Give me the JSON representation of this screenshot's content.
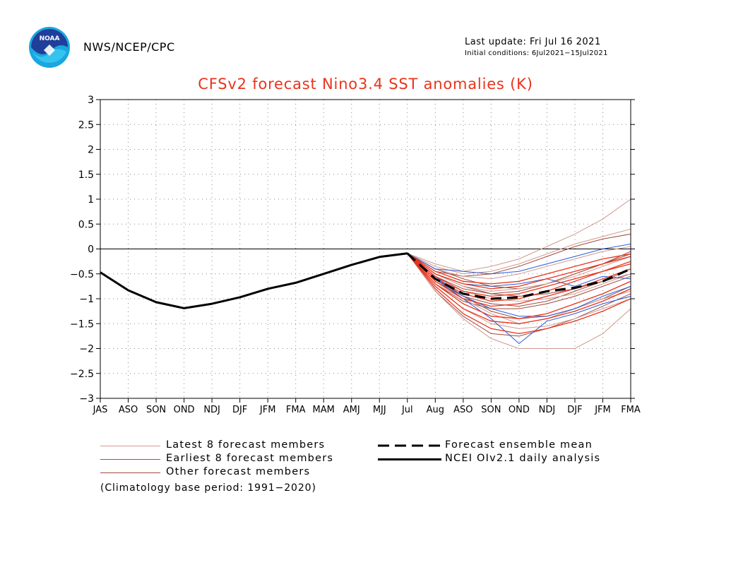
{
  "header": {
    "agency": "NWS/NCEP/CPC",
    "last_update": "Last update: Fri Jul 16 2021",
    "initial_conditions": "Initial conditions: 6Jul2021−15Jul2021",
    "logo_text": "NOAA"
  },
  "colors": {
    "title": "#e8341c",
    "latest_members": "#cf9a8e",
    "earliest_members": "#e8341c",
    "other_members": "#a04a3f",
    "blue_members": "#2a5bd6",
    "ensemble_mean": "#000000",
    "analysis": "#000000"
  },
  "chart_data": {
    "type": "line",
    "title": "CFSv2 forecast Nino3.4 SST anomalies (K)",
    "categories": [
      "JAS",
      "ASO",
      "SON",
      "OND",
      "NDJ",
      "DJF",
      "JFM",
      "FMA",
      "MAM",
      "AMJ",
      "MJJ",
      "Jul",
      "Aug",
      "ASO",
      "SON",
      "OND",
      "NDJ",
      "DJF",
      "JFM",
      "FMA"
    ],
    "ylim": [
      -3,
      3
    ],
    "yticks": [
      "3",
      "2.5",
      "2",
      "1.5",
      "1",
      "0.5",
      "0",
      "−0.5",
      "−1",
      "−1.5",
      "−2",
      "−2.5",
      "−3"
    ],
    "ytick_values": [
      3,
      2.5,
      2,
      1.5,
      1,
      0.5,
      0,
      -0.5,
      -1,
      -1.5,
      -2,
      -2.5,
      -3
    ],
    "grid": true,
    "zero_line": 0,
    "analysis": {
      "name": "NCEI OIv2.1 daily analysis",
      "x_start": 0,
      "values": [
        -0.47,
        -0.83,
        -1.07,
        -1.19,
        -1.1,
        -0.97,
        -0.8,
        -0.68,
        -0.5,
        -0.32,
        -0.16,
        -0.09
      ]
    },
    "ensemble_mean": {
      "name": "Forecast ensemble mean",
      "x_start": 11,
      "values": [
        -0.09,
        -0.6,
        -0.9,
        -1.0,
        -0.97,
        -0.85,
        -0.78,
        -0.65,
        -0.4
      ]
    },
    "members": {
      "x_start": 11,
      "latest": [
        [
          -0.09,
          -0.3,
          -0.45,
          -0.35,
          -0.2,
          0.05,
          0.3,
          0.6,
          1.0
        ],
        [
          -0.09,
          -0.35,
          -0.5,
          -0.45,
          -0.3,
          -0.1,
          0.1,
          0.25,
          0.4
        ],
        [
          -0.09,
          -0.4,
          -0.55,
          -0.6,
          -0.5,
          -0.35,
          -0.2,
          -0.05,
          0.05
        ],
        [
          -0.09,
          -0.5,
          -0.75,
          -0.85,
          -0.8,
          -0.7,
          -0.55,
          -0.35,
          -0.15
        ],
        [
          -0.09,
          -0.7,
          -1.0,
          -1.3,
          -1.5,
          -1.4,
          -1.2,
          -1.0,
          -0.85
        ],
        [
          -0.09,
          -0.85,
          -1.4,
          -1.8,
          -2.0,
          -2.0,
          -2.0,
          -1.7,
          -1.2
        ],
        [
          -0.09,
          -0.6,
          -0.85,
          -1.0,
          -1.05,
          -1.0,
          -0.9,
          -0.7,
          -0.5
        ],
        [
          -0.09,
          -0.75,
          -1.2,
          -1.5,
          -1.6,
          -1.55,
          -1.4,
          -1.2,
          -1.0
        ]
      ],
      "earliest": [
        [
          -0.09,
          -0.45,
          -0.65,
          -0.7,
          -0.65,
          -0.5,
          -0.35,
          -0.2,
          -0.1
        ],
        [
          -0.09,
          -0.55,
          -0.85,
          -0.95,
          -0.9,
          -0.75,
          -0.6,
          -0.45,
          -0.3
        ],
        [
          -0.09,
          -0.65,
          -1.0,
          -1.15,
          -1.1,
          -0.95,
          -0.8,
          -0.6,
          -0.4
        ],
        [
          -0.09,
          -0.7,
          -1.1,
          -1.35,
          -1.4,
          -1.3,
          -1.1,
          -0.9,
          -0.65
        ],
        [
          -0.09,
          -0.8,
          -1.3,
          -1.6,
          -1.7,
          -1.6,
          -1.45,
          -1.25,
          -1.0
        ],
        [
          -0.09,
          -0.5,
          -0.7,
          -0.8,
          -0.75,
          -0.6,
          -0.45,
          -0.3,
          -0.15
        ],
        [
          -0.09,
          -0.6,
          -0.9,
          -1.05,
          -1.0,
          -0.85,
          -0.65,
          -0.45,
          -0.25
        ],
        [
          -0.09,
          -0.75,
          -1.2,
          -1.45,
          -1.5,
          -1.4,
          -1.25,
          -1.05,
          -0.8
        ]
      ],
      "other": [
        [
          -0.09,
          -0.4,
          -0.6,
          -0.75,
          -0.8,
          -0.7,
          -0.5,
          -0.3,
          -0.05
        ],
        [
          -0.09,
          -0.55,
          -0.8,
          -0.9,
          -0.85,
          -0.7,
          -0.5,
          -0.3,
          -0.1
        ],
        [
          -0.09,
          -0.65,
          -0.95,
          -1.1,
          -1.15,
          -1.05,
          -0.85,
          -0.65,
          -0.4
        ],
        [
          -0.09,
          -0.85,
          -1.35,
          -1.7,
          -1.75,
          -1.6,
          -1.4,
          -1.15,
          -0.9
        ],
        [
          -0.09,
          -0.5,
          -0.75,
          -0.9,
          -0.95,
          -0.9,
          -0.8,
          -0.65,
          -0.5
        ],
        [
          -0.09,
          -0.7,
          -1.05,
          -1.2,
          -1.2,
          -1.1,
          -0.95,
          -0.75,
          -0.55
        ],
        [
          -0.09,
          -0.45,
          -0.55,
          -0.5,
          -0.35,
          -0.15,
          0.05,
          0.2,
          0.3
        ],
        [
          -0.09,
          -0.6,
          -0.95,
          -1.25,
          -1.4,
          -1.35,
          -1.2,
          -1.0,
          -0.75
        ]
      ],
      "blue": [
        [
          -0.09,
          -0.4,
          -0.45,
          -0.5,
          -0.45,
          -0.3,
          -0.15,
          0.0,
          0.1
        ],
        [
          -0.09,
          -0.6,
          -1.0,
          -1.4,
          -1.9,
          -1.45,
          -1.3,
          -1.1,
          -0.95
        ],
        [
          -0.09,
          -0.5,
          -0.7,
          -0.75,
          -0.7,
          -0.6,
          -0.75,
          -0.55,
          -0.6
        ],
        [
          -0.09,
          -0.55,
          -0.95,
          -1.2,
          -1.35,
          -1.35,
          -1.2,
          -0.95,
          -0.75
        ]
      ]
    }
  },
  "legend": {
    "latest": "Latest 8 forecast members",
    "earliest": "Earliest 8 forecast members",
    "other": "Other forecast members",
    "mean": "Forecast ensemble mean",
    "analysis": "NCEI OIv2.1 daily analysis"
  },
  "footnote": "(Climatology base period: 1991−2020)"
}
